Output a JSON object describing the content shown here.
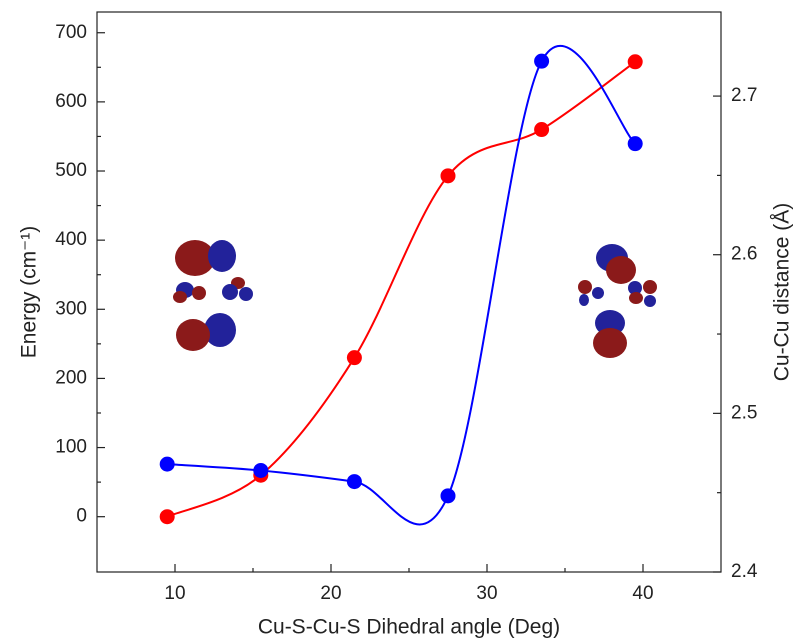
{
  "chart_data": {
    "type": "line",
    "x_label": "Cu-S-Cu-S Dihedral angle (Deg)",
    "y_label": "Energy (cm⁻¹)",
    "y2_label": "Cu-Cu distance (Å)",
    "x": [
      9.5,
      15.5,
      21.5,
      27.5,
      33.5,
      39.5
    ],
    "series": [
      {
        "color": "#ff0000",
        "values": [
          0,
          60,
          230,
          493,
          560,
          658
        ]
      },
      {
        "color": "#0000ff",
        "axis": "y2",
        "values": [
          2.468,
          2.464,
          2.457,
          2.448,
          2.722,
          2.67
        ]
      }
    ],
    "xlim": [
      5,
      45
    ],
    "xticks": [
      10,
      20,
      30,
      40
    ],
    "ylim": [
      -80,
      730
    ],
    "yticks": [
      0,
      100,
      200,
      300,
      400,
      500,
      600,
      700
    ],
    "y2lim": [
      2.4,
      2.753
    ],
    "y2ticks": [
      2.4,
      2.5,
      2.6,
      2.7
    ]
  }
}
